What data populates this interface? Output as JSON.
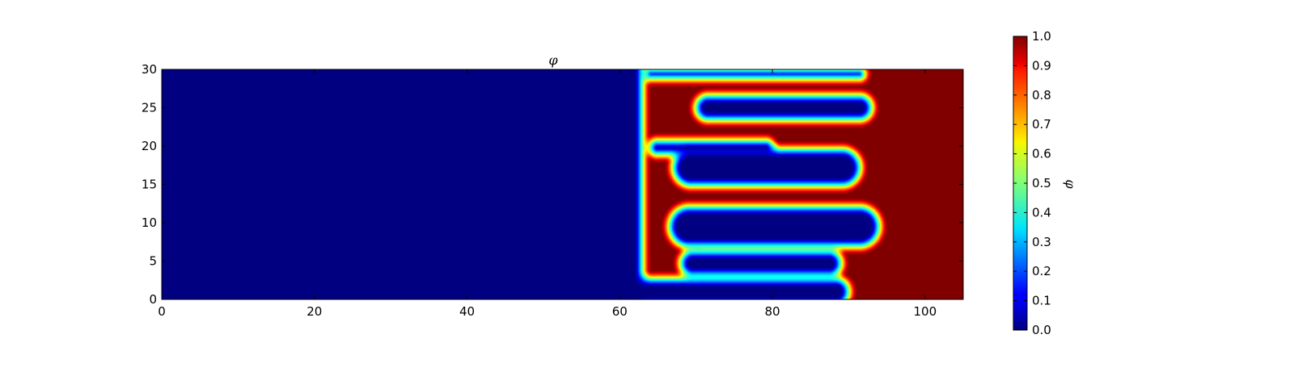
{
  "chart_data": {
    "type": "heatmap",
    "title": "φ",
    "xlabel": "",
    "ylabel": "",
    "xlim": [
      0,
      105
    ],
    "ylim": [
      0,
      30
    ],
    "x_ticks": [
      0,
      20,
      40,
      60,
      80,
      100
    ],
    "y_ticks": [
      0,
      5,
      10,
      15,
      20,
      25,
      30
    ],
    "x_tick_labels": [
      "0",
      "20",
      "40",
      "60",
      "80",
      "100"
    ],
    "y_tick_labels": [
      "0",
      "5",
      "10",
      "15",
      "20",
      "25",
      "30"
    ],
    "colormap": "jet",
    "colorbar": {
      "label": "φ",
      "range": [
        0.0,
        1.0
      ],
      "ticks": [
        0.0,
        0.1,
        0.2,
        0.3,
        0.4,
        0.5,
        0.6,
        0.7,
        0.8,
        0.9,
        1.0
      ],
      "tick_labels": [
        "0.0",
        "0.1",
        "0.2",
        "0.3",
        "0.4",
        "0.5",
        "0.6",
        "0.7",
        "0.8",
        "0.9",
        "1.0"
      ]
    },
    "field": {
      "low_value": 0.0,
      "high_value": 1.0,
      "high_region_x_start": 63,
      "low_fingers": [
        {
          "y_center": 1.0,
          "x_tip": 60.0,
          "x_end": 90.0,
          "width": 1.7
        },
        {
          "y_center": 4.7,
          "x_tip": 68.0,
          "x_end": 89.0,
          "width": 1.6
        },
        {
          "y_center": 9.5,
          "x_tip": 66.5,
          "x_end": 94.0,
          "width": 2.6
        },
        {
          "y_center": 17.2,
          "x_tip": 67.0,
          "x_end": 91.5,
          "width": 2.4
        },
        {
          "y_center": 19.8,
          "x_tip": 64.0,
          "x_end": 80.0,
          "width": 0.9
        },
        {
          "y_center": 25.0,
          "x_tip": 70.0,
          "x_end": 93.0,
          "width": 1.6
        },
        {
          "y_center": 29.4,
          "x_tip": 63.5,
          "x_end": 92.0,
          "width": 0.6
        }
      ],
      "interface_width": 1.2
    }
  },
  "colors": {
    "axis": "#000000",
    "background": "#ffffff"
  }
}
